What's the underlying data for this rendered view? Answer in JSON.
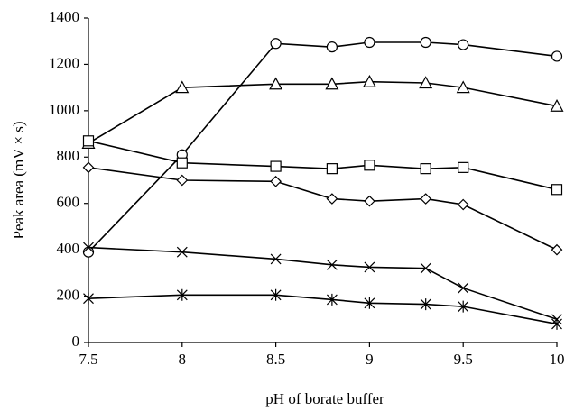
{
  "chart_data": {
    "type": "line",
    "x_label": "pH of borate buffer",
    "y_label": "Peak area (mV × s)",
    "x": [
      7.5,
      8,
      8.5,
      8.8,
      9,
      9.3,
      9.5,
      10
    ],
    "series": [
      {
        "marker": "circle",
        "color": "#000000",
        "values": [
          390,
          810,
          1290,
          1275,
          1295,
          1295,
          1285,
          1235
        ]
      },
      {
        "marker": "triangle",
        "color": "#000000",
        "values": [
          860,
          1100,
          1115,
          1115,
          1125,
          1120,
          1100,
          1020
        ]
      },
      {
        "marker": "square",
        "color": "#000000",
        "values": [
          870,
          775,
          760,
          750,
          765,
          750,
          755,
          660
        ]
      },
      {
        "marker": "diamond",
        "color": "#000000",
        "values": [
          755,
          700,
          695,
          620,
          610,
          620,
          595,
          400
        ]
      },
      {
        "marker": "cross",
        "color": "#000000",
        "values": [
          410,
          390,
          360,
          335,
          325,
          320,
          235,
          100
        ]
      },
      {
        "marker": "asterisk",
        "color": "#000000",
        "values": [
          190,
          205,
          205,
          185,
          170,
          165,
          155,
          80
        ]
      }
    ],
    "xlim": [
      7.5,
      10
    ],
    "xticks": [
      7.5,
      8,
      8.5,
      9,
      9.5,
      10
    ],
    "ylim": [
      0,
      1400
    ],
    "yticks": [
      0,
      200,
      400,
      600,
      800,
      1000,
      1200,
      1400
    ],
    "grid": false
  }
}
